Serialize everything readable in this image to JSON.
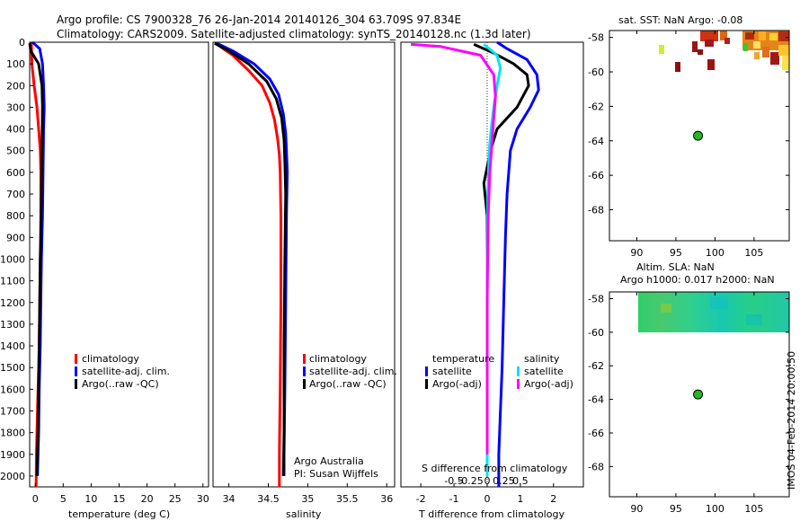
{
  "header": {
    "line1": "Argo profile: CS 7900328_76 26-Jan-2014 20140126_304 63.709S 97.834E",
    "line2": "Climatology: CARS2009. Satellite-adjusted climatology: synTS_20140128.nc (1.3d later)"
  },
  "stamp": "IMOS 04-Feb-2014 20:00:50",
  "colors": {
    "clim": "#ff0000",
    "sat": "#0000ff",
    "argo": "#000000",
    "sal_sat": "#00e5ee",
    "sal_argo": "#ff00ff"
  },
  "chart_data": [
    {
      "type": "line",
      "name": "temperature-profile",
      "xlabel": "temperature (deg C)",
      "ylim": [
        2050,
        0
      ],
      "xlim": [
        -1,
        31
      ],
      "yticks": [
        "0",
        "100",
        "200",
        "300",
        "400",
        "500",
        "600",
        "700",
        "800",
        "900",
        "1000",
        "1100",
        "1200",
        "1300",
        "1400",
        "1500",
        "1600",
        "1700",
        "1800",
        "1900",
        "2000"
      ],
      "ytick_values": [
        0,
        100,
        200,
        300,
        400,
        500,
        600,
        700,
        800,
        900,
        1000,
        1100,
        1200,
        1300,
        1400,
        1500,
        1600,
        1700,
        1800,
        1900,
        2000
      ],
      "xticks": [
        "0",
        "5",
        "10",
        "15",
        "20",
        "25",
        "30"
      ],
      "xtick_values": [
        0,
        5,
        10,
        15,
        20,
        25,
        30
      ],
      "legend": [
        "climatology",
        "satellite-adj. clim.",
        "Argo(..raw -QC)"
      ],
      "series": [
        {
          "name": "climatology",
          "color": "clim",
          "x": [
            -0.7,
            -0.6,
            -0.2,
            0.3,
            0.6,
            0.9,
            1.0,
            1.0,
            0.95,
            0.9,
            0.8,
            0.7,
            0.6,
            0.5,
            0.4,
            0.3,
            0.2,
            0.15
          ],
          "y": [
            0,
            100,
            200,
            300,
            400,
            500,
            600,
            800,
            900,
            1000,
            1200,
            1400,
            1500,
            1600,
            1700,
            1800,
            1900,
            2050
          ]
        },
        {
          "name": "satellite-adj. clim.",
          "color": "sat",
          "x": [
            -0.5,
            0.8,
            1.3,
            1.5,
            1.6,
            1.5,
            1.4,
            1.3,
            1.2,
            1.1,
            1.0,
            0.9,
            0.8,
            0.7,
            0.6,
            0.5,
            0.4
          ],
          "y": [
            0,
            30,
            100,
            200,
            300,
            400,
            600,
            800,
            900,
            1000,
            1200,
            1400,
            1500,
            1600,
            1800,
            1900,
            2000
          ]
        },
        {
          "name": "Argo(..raw -QC)",
          "color": "argo",
          "x": [
            -1.0,
            -0.8,
            0.6,
            1.2,
            1.3,
            1.2,
            1.1,
            1.0,
            0.9,
            0.8,
            0.7,
            0.6,
            0.5,
            0.4,
            0.3
          ],
          "y": [
            5,
            40,
            100,
            200,
            300,
            500,
            700,
            900,
            1000,
            1200,
            1400,
            1600,
            1800,
            1900,
            2000
          ]
        }
      ]
    },
    {
      "type": "line",
      "name": "salinity-profile",
      "xlabel": "salinity",
      "ylim": [
        2050,
        0
      ],
      "xlim": [
        33.8,
        36.1
      ],
      "xticks": [
        "34",
        "34.5",
        "35",
        "35.5",
        "36"
      ],
      "xtick_values": [
        34,
        34.5,
        35,
        35.5,
        36
      ],
      "legend": [
        "climatology",
        "satellite-adj. clim.",
        "Argo(..raw -QC)"
      ],
      "footnote": [
        "Argo Australia",
        "PI: Susan Wijffels"
      ],
      "series": [
        {
          "name": "climatology",
          "color": "clim",
          "x": [
            33.85,
            34.05,
            34.25,
            34.42,
            34.52,
            34.58,
            34.62,
            34.64,
            34.65,
            34.66,
            34.66,
            34.65,
            34.64,
            34.64
          ],
          "y": [
            10,
            60,
            130,
            200,
            280,
            360,
            450,
            520,
            600,
            800,
            1200,
            1600,
            1900,
            2050
          ]
        },
        {
          "name": "satellite-adj. clim.",
          "color": "sat",
          "x": [
            33.85,
            34.05,
            34.32,
            34.52,
            34.63,
            34.69,
            34.72,
            34.73,
            34.74,
            34.73,
            34.72,
            34.71,
            34.7,
            34.7
          ],
          "y": [
            5,
            40,
            100,
            170,
            240,
            330,
            420,
            500,
            600,
            800,
            1200,
            1600,
            1900,
            2000
          ]
        },
        {
          "name": "Argo(..raw -QC)",
          "color": "argo",
          "x": [
            33.82,
            34.0,
            34.25,
            34.48,
            34.6,
            34.67,
            34.7,
            34.71,
            34.72,
            34.71,
            34.7,
            34.7,
            34.69
          ],
          "y": [
            5,
            40,
            100,
            180,
            260,
            350,
            450,
            550,
            700,
            1000,
            1400,
            1800,
            2000
          ]
        }
      ]
    },
    {
      "type": "line",
      "name": "difference-profile",
      "xlabel": "T difference from climatology",
      "xlabel_top": "S difference from climatology",
      "ylim": [
        2050,
        0
      ],
      "xlim": [
        -2.6,
        2.9
      ],
      "xticks_T": [
        "-2",
        "-1",
        "0",
        "1",
        "2"
      ],
      "xtick_values_T": [
        -2,
        -1,
        0,
        1,
        2
      ],
      "xticks_S": [
        "-0.5",
        "-0.25",
        "0",
        "0.25",
        "0.5"
      ],
      "xtick_values_S": [
        -0.5,
        -0.25,
        0,
        0.25,
        0.5
      ],
      "legend_headers": [
        "temperature",
        "salinity"
      ],
      "legend": [
        "satellite",
        "Argo(-adj)",
        "satellite",
        "Argo(-adj)"
      ],
      "series": [
        {
          "name": "T satellite",
          "color": "sat",
          "x": [
            0.3,
            0.6,
            1.2,
            1.5,
            1.55,
            1.3,
            0.9,
            0.7,
            0.6,
            0.55,
            0.5,
            0.45,
            0.4,
            0.35,
            0.35
          ],
          "y": [
            0,
            30,
            80,
            150,
            220,
            300,
            400,
            500,
            700,
            900,
            1200,
            1500,
            1700,
            1900,
            2050
          ]
        },
        {
          "name": "T Argo(-adj)",
          "color": "argo",
          "x": [
            -0.4,
            0.2,
            0.8,
            1.2,
            1.25,
            0.9,
            0.3,
            0.1,
            -0.1,
            0.0,
            0.0,
            0.0,
            0.0,
            0.0
          ],
          "y": [
            10,
            50,
            100,
            150,
            200,
            300,
            400,
            500,
            650,
            800,
            1100,
            1500,
            1800,
            1950
          ]
        },
        {
          "name": "S satellite",
          "color": "sal_sat",
          "x": [
            -0.1,
            0.3,
            0.4,
            0.3,
            0.2,
            0.12,
            0.06,
            0.02,
            0.0,
            0.0,
            0.0,
            0.0
          ],
          "y": [
            10,
            60,
            120,
            200,
            300,
            400,
            500,
            700,
            1000,
            1400,
            1800,
            2000
          ]
        },
        {
          "name": "S Argo(-adj)",
          "color": "sal_argo",
          "x": [
            -2.3,
            -1.4,
            -0.2,
            0.2,
            0.25,
            0.2,
            0.15,
            0.08,
            0.03,
            0.0,
            0.0,
            0.0
          ],
          "y": [
            10,
            20,
            60,
            150,
            250,
            350,
            450,
            600,
            800,
            1200,
            1600,
            1900
          ]
        }
      ]
    },
    {
      "type": "heatmap",
      "name": "sst-map",
      "title": "sat. SST: NaN Argo: -0.08",
      "xlim": [
        86.5,
        109.5
      ],
      "ylim": [
        -69.8,
        -57.6
      ],
      "xticks": [
        "90",
        "95",
        "100",
        "105"
      ],
      "xtick_values": [
        90,
        95,
        100,
        105
      ],
      "yticks": [
        "-58",
        "-60",
        "-62",
        "-64",
        "-66",
        "-68"
      ],
      "ytick_values": [
        -58,
        -60,
        -62,
        -64,
        -66,
        -68
      ],
      "argo_position": {
        "lon": 97.834,
        "lat": -63.709
      }
    },
    {
      "type": "heatmap",
      "name": "sla-map",
      "title_line1": "Altim. SLA: NaN",
      "title_line2": "Argo h1000: 0.017 h2000: NaN",
      "xlim": [
        86.5,
        109.5
      ],
      "ylim": [
        -69.8,
        -57.6
      ],
      "xticks": [
        "90",
        "95",
        "100",
        "105"
      ],
      "xtick_values": [
        90,
        95,
        100,
        105
      ],
      "yticks": [
        "-58",
        "-60",
        "-62",
        "-64",
        "-66",
        "-68"
      ],
      "ytick_values": [
        -58,
        -60,
        -62,
        -64,
        -66,
        -68
      ],
      "argo_position": {
        "lon": 97.834,
        "lat": -63.709
      }
    }
  ]
}
